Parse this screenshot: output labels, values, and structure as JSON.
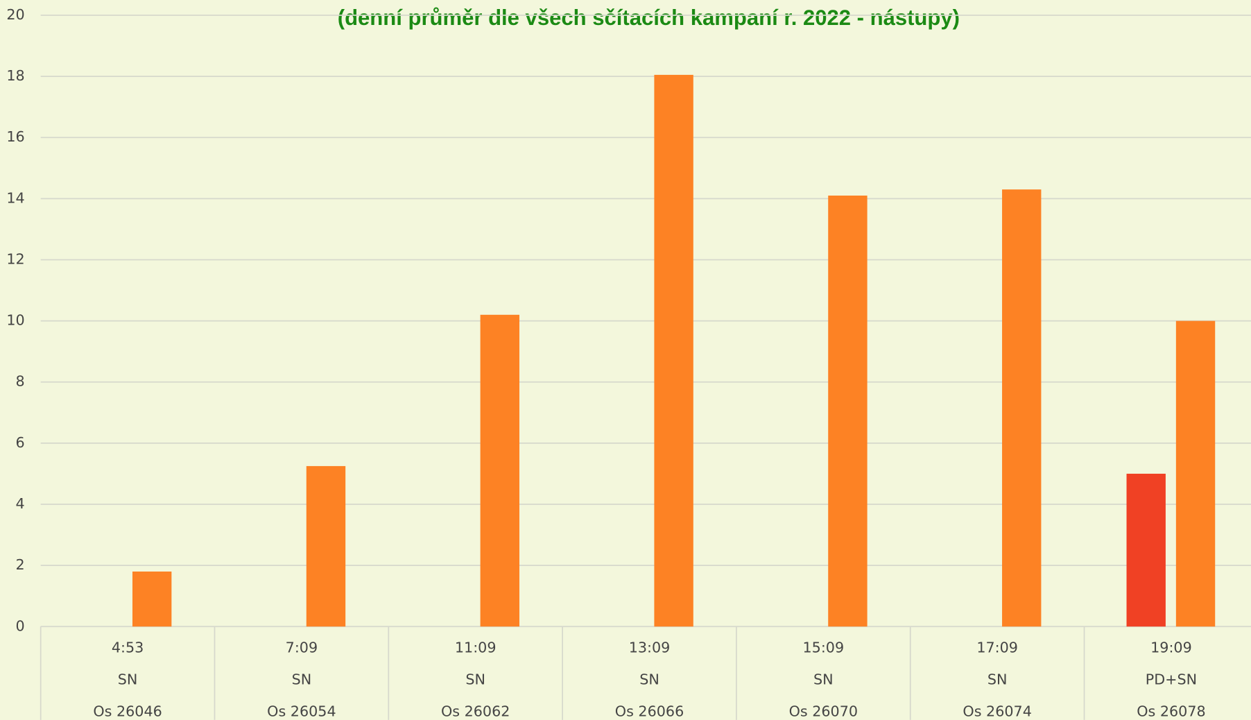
{
  "chart_data": {
    "type": "bar",
    "title": "(denní průměr dle všech sčítacích kampaní r. 2022 - nástupy)",
    "categories": [
      [
        "4:53",
        "SN",
        "Os 26046"
      ],
      [
        "7:09",
        "SN",
        "Os 26054"
      ],
      [
        "11:09",
        "SN",
        "Os 26062"
      ],
      [
        "13:09",
        "SN",
        "Os 26066"
      ],
      [
        "15:09",
        "SN",
        "Os 26070"
      ],
      [
        "17:09",
        "SN",
        "Os 26074"
      ],
      [
        "19:09",
        "PD+SN",
        "Os 26078"
      ]
    ],
    "series": [
      {
        "color": "#f04124",
        "values": [
          null,
          null,
          null,
          null,
          null,
          null,
          5
        ]
      },
      {
        "color": "#fd8224",
        "values": [
          1.8,
          5.25,
          10.2,
          18.05,
          14.1,
          14.3,
          10
        ]
      }
    ],
    "ylim": [
      0,
      20
    ],
    "yticks": [
      0,
      2,
      4,
      6,
      8,
      10,
      12,
      14,
      16,
      18,
      20
    ],
    "grid": true
  }
}
